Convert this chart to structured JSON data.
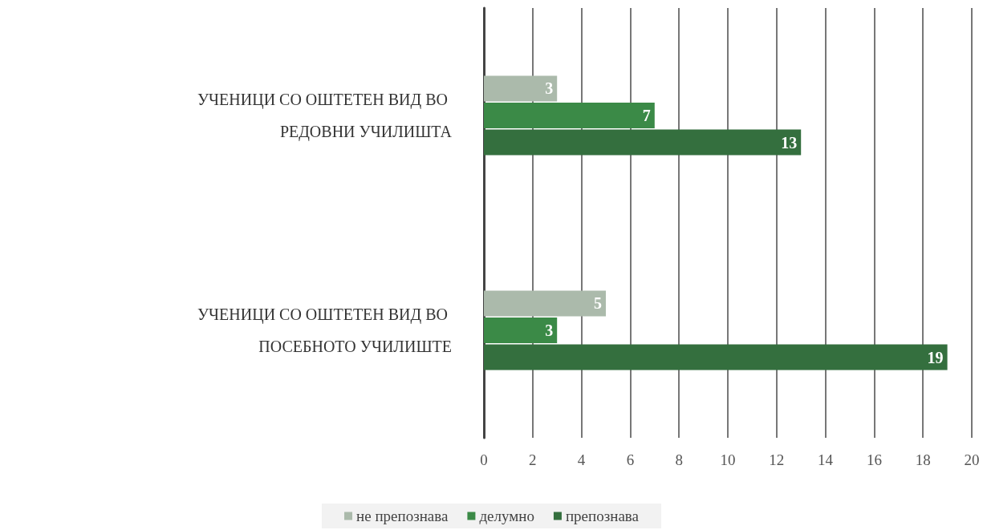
{
  "chart_data": {
    "type": "bar",
    "orientation": "horizontal",
    "categories": [
      "УЧЕНИЦИ СО ОШТЕТЕН ВИД ВО РЕДОВНИ УЧИЛИШТА",
      "УЧЕНИЦИ СО ОШТЕТЕН ВИД ВО ПОСЕБНОТО УЧИЛИШТЕ"
    ],
    "series": [
      {
        "name": "не препознава",
        "color": "#abbaab",
        "values": [
          3,
          5
        ]
      },
      {
        "name": "делумно",
        "color": "#3b8a47",
        "values": [
          7,
          3
        ]
      },
      {
        "name": "препознава",
        "color": "#346f3e",
        "values": [
          13,
          19
        ]
      }
    ],
    "data_labels": true,
    "xlim": [
      0,
      20
    ],
    "xticks": [
      0,
      2,
      4,
      6,
      8,
      10,
      12,
      14,
      16,
      18,
      20
    ],
    "grid": "x",
    "legend": "bottom"
  }
}
